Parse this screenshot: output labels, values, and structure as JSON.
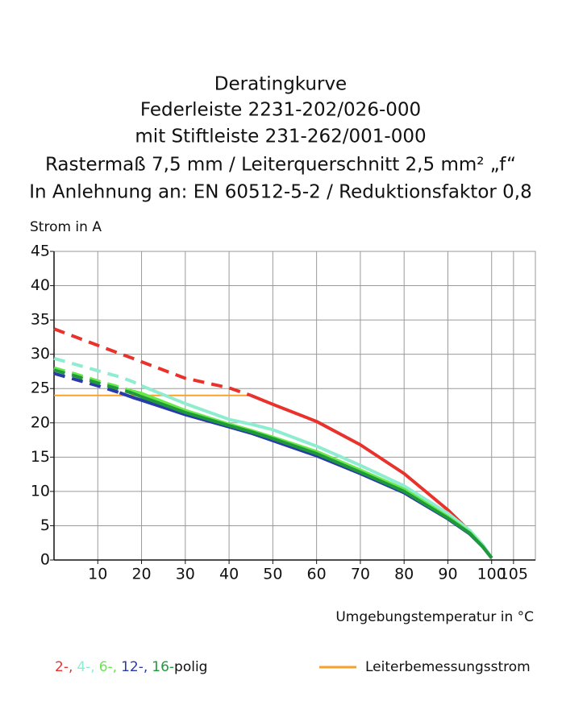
{
  "chart_data": {
    "type": "line",
    "title": [
      "Deratingkurve",
      "Federleiste 2231-202/026-000",
      "mit Stiftleiste 231-262/001-000",
      "Rastermaß 7,5 mm / Leiterquerschnitt 2,5 mm² „f“",
      "In Anlehnung an: EN 60512-5-2 / Reduktionsfaktor 0,8"
    ],
    "y_label": "Strom in A",
    "x_label": "Umgebungstemperatur in °C",
    "xlim": [
      0,
      110
    ],
    "ylim": [
      0,
      45
    ],
    "xticks": [
      10,
      20,
      30,
      40,
      50,
      60,
      70,
      80,
      90,
      100,
      105
    ],
    "yticks": [
      0,
      5,
      10,
      15,
      20,
      25,
      30,
      35,
      40,
      45
    ],
    "grid": true,
    "grid_color": "#9a9a9a",
    "x": [
      0,
      5,
      10,
      15,
      18,
      20,
      30,
      40,
      45,
      50,
      60,
      70,
      80,
      90,
      95,
      98,
      100
    ],
    "series": [
      {
        "name": "2-,",
        "color": "#e8322b",
        "extrapolated_values": [
          33.7,
          32.5,
          31.3,
          30.1,
          29.4,
          28.9,
          26.5,
          25.1,
          24,
          null,
          null,
          null,
          null,
          null,
          null,
          null,
          null
        ],
        "values": [
          null,
          null,
          null,
          null,
          null,
          null,
          null,
          null,
          24,
          22.7,
          20.2,
          16.8,
          12.6,
          7.3,
          4.2,
          2.0,
          0.3
        ]
      },
      {
        "name": "4-,",
        "color": "#8eecd0",
        "extrapolated_values": [
          29.4,
          28.5,
          27.6,
          26.7,
          26.0,
          25.4,
          null,
          null,
          null,
          null,
          null,
          null,
          null,
          null,
          null,
          null,
          null
        ],
        "values": [
          null,
          null,
          null,
          null,
          null,
          25.4,
          22.8,
          20.5,
          19.8,
          19.0,
          16.6,
          13.8,
          10.8,
          6.8,
          4.3,
          2.2,
          0.3
        ]
      },
      {
        "name": "6-,",
        "color": "#66e84a",
        "extrapolated_values": [
          28.0,
          27.1,
          26.1,
          25.2,
          24.6,
          null,
          null,
          null,
          null,
          null,
          null,
          null,
          null,
          null,
          null,
          null,
          null
        ],
        "values": [
          null,
          null,
          null,
          null,
          24.6,
          24.3,
          21.8,
          19.8,
          18.9,
          17.9,
          15.8,
          13.1,
          10.3,
          6.3,
          4.0,
          2.0,
          0.3
        ]
      },
      {
        "name": "12-,",
        "color": "#2a3aa8",
        "extrapolated_values": [
          27.2,
          26.3,
          25.4,
          24.4,
          null,
          null,
          null,
          null,
          null,
          null,
          null,
          null,
          null,
          null,
          null,
          null,
          null
        ],
        "values": [
          null,
          null,
          null,
          24.4,
          23.7,
          23.3,
          21.2,
          19.4,
          18.5,
          17.4,
          15.2,
          12.6,
          9.8,
          6.0,
          3.8,
          1.9,
          0.3
        ]
      },
      {
        "name": "16-",
        "color": "#1e9a3a",
        "extrapolated_values": [
          27.7,
          26.8,
          25.8,
          24.9,
          24.3,
          null,
          null,
          null,
          null,
          null,
          null,
          null,
          null,
          null,
          null,
          null,
          null
        ],
        "values": [
          null,
          null,
          null,
          null,
          24.3,
          23.8,
          21.5,
          19.6,
          18.7,
          17.7,
          15.5,
          12.8,
          10.0,
          6.1,
          3.9,
          1.9,
          0.3
        ]
      }
    ],
    "legend_suffix": "polig",
    "reference_line": {
      "name": "Leiterbemessungsstrom",
      "color": "#f7a22a",
      "x": [
        0,
        45
      ],
      "values": [
        24,
        24
      ]
    }
  }
}
